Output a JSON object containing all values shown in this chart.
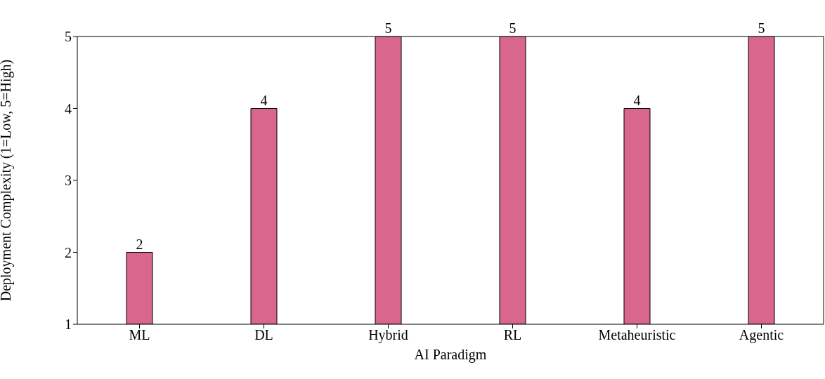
{
  "chart_data": {
    "type": "bar",
    "xlabel": "AI Paradigm",
    "ylabel": "Deployment Complexity (1=Low, 5=High)",
    "categories": [
      "ML",
      "DL",
      "Hybrid",
      "RL",
      "Metaheuristic",
      "Agentic"
    ],
    "values": [
      2,
      4,
      5,
      5,
      4,
      5
    ],
    "color": "#d9668c",
    "ylim": [
      1,
      5
    ],
    "yticks": [
      1,
      2,
      3,
      4,
      5
    ],
    "data_labels": true,
    "grid": false
  }
}
